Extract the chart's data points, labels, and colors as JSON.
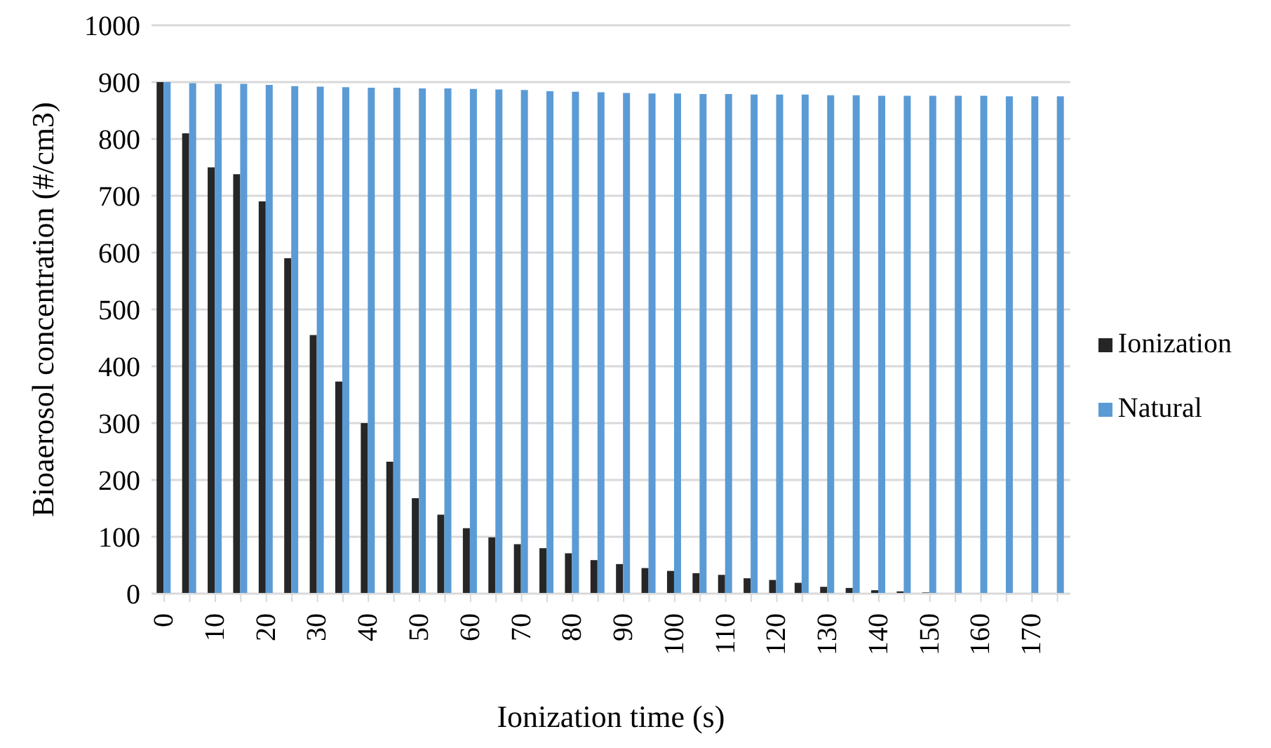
{
  "chart_data": {
    "type": "bar",
    "xlabel": "Ionization time (s)",
    "ylabel": "Bioaerosol concentration (#/cm3)",
    "categories": [
      "0",
      null,
      "10",
      null,
      "20",
      null,
      "30",
      null,
      "40",
      null,
      "50",
      null,
      "60",
      null,
      "70",
      null,
      "80",
      null,
      "90",
      null,
      "100",
      null,
      "110",
      null,
      "120",
      null,
      "130",
      null,
      "140",
      null,
      "150",
      null,
      "160",
      null,
      "170",
      null
    ],
    "series": [
      {
        "name": "Ionization",
        "color": "#262626",
        "values": [
          900,
          810,
          750,
          738,
          690,
          590,
          455,
          373,
          300,
          232,
          168,
          139,
          115,
          99,
          87,
          80,
          71,
          59,
          52,
          45,
          40,
          36,
          33,
          27,
          24,
          19,
          12,
          10,
          6,
          4,
          2,
          0,
          0,
          0,
          0,
          0
        ]
      },
      {
        "name": "Natural",
        "color": "#5b9bd5",
        "values": [
          900,
          898,
          897,
          897,
          895,
          893,
          892,
          891,
          890,
          890,
          889,
          889,
          888,
          887,
          886,
          884,
          883,
          882,
          881,
          880,
          880,
          879,
          879,
          878,
          878,
          878,
          877,
          877,
          876,
          876,
          876,
          876,
          876,
          875,
          875,
          875
        ]
      }
    ],
    "ylim": [
      0,
      1000
    ],
    "yticks": [
      0,
      100,
      200,
      300,
      400,
      500,
      600,
      700,
      800,
      900,
      1000
    ],
    "grid": "y",
    "legend": "right"
  }
}
